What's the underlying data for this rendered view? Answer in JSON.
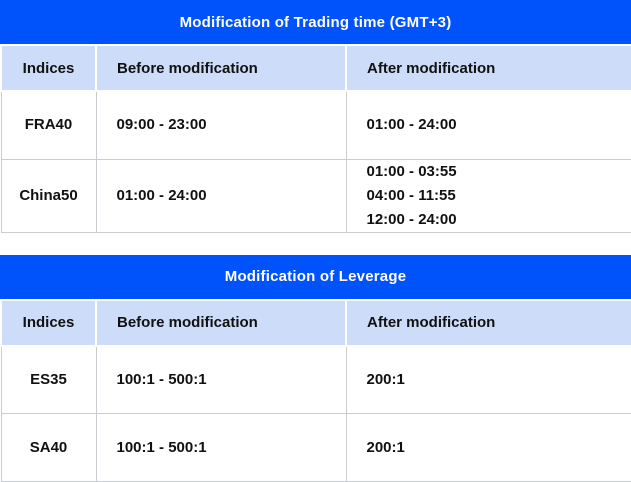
{
  "colors": {
    "title_bg": "#0052fa",
    "title_text": "#ffffff",
    "header_bg": "#cddcf8",
    "border": "#c9cdd2",
    "text": "#111111"
  },
  "tables": [
    {
      "title": "Modification of Trading time (GMT+3)",
      "columns": [
        "Indices",
        "Before modification",
        "After modification"
      ],
      "rows": [
        {
          "index": "FRA40",
          "before": "09:00 - 23:00",
          "after": "01:00 - 24:00"
        },
        {
          "index": "China50",
          "before": "01:00 - 24:00",
          "after": "01:00 - 03:55\n04:00 - 11:55\n12:00 - 24:00"
        }
      ]
    },
    {
      "title": "Modification of Leverage",
      "columns": [
        "Indices",
        "Before modification",
        "After modification"
      ],
      "rows": [
        {
          "index": "ES35",
          "before": "100:1 - 500:1",
          "after": "200:1"
        },
        {
          "index": "SA40",
          "before": "100:1 - 500:1",
          "after": "200:1"
        }
      ]
    }
  ]
}
